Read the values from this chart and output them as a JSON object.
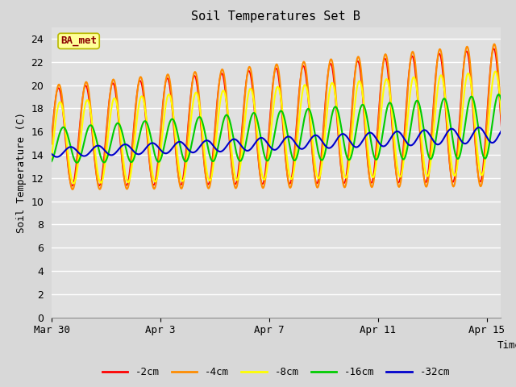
{
  "title": "Soil Temperatures Set B",
  "xlabel": "Time",
  "ylabel": "Soil Temperature (C)",
  "ylim": [
    0,
    25
  ],
  "yticks": [
    0,
    2,
    4,
    6,
    8,
    10,
    12,
    14,
    16,
    18,
    20,
    22,
    24
  ],
  "fig_bg_color": "#d8d8d8",
  "plot_bg_color": "#e0e0e0",
  "legend_label": "BA_met",
  "legend_text_color": "#8b0000",
  "legend_bg_color": "#ffff99",
  "legend_edge_color": "#b8b800",
  "series": [
    {
      "label": "-2cm",
      "color": "#ff0000",
      "lw": 1.2
    },
    {
      "label": "-4cm",
      "color": "#ff8c00",
      "lw": 1.5
    },
    {
      "label": "-8cm",
      "color": "#ffff00",
      "lw": 1.5
    },
    {
      "label": "-16cm",
      "color": "#00cc00",
      "lw": 1.5
    },
    {
      "label": "-32cm",
      "color": "#0000cc",
      "lw": 1.5
    }
  ],
  "n_days": 17,
  "samples_per_day": 48,
  "date_ticks": [
    "Mar 30",
    "Apr 3",
    "Apr 7",
    "Apr 11",
    "Apr 15"
  ],
  "date_tick_days": [
    0,
    4,
    8,
    12,
    16
  ]
}
